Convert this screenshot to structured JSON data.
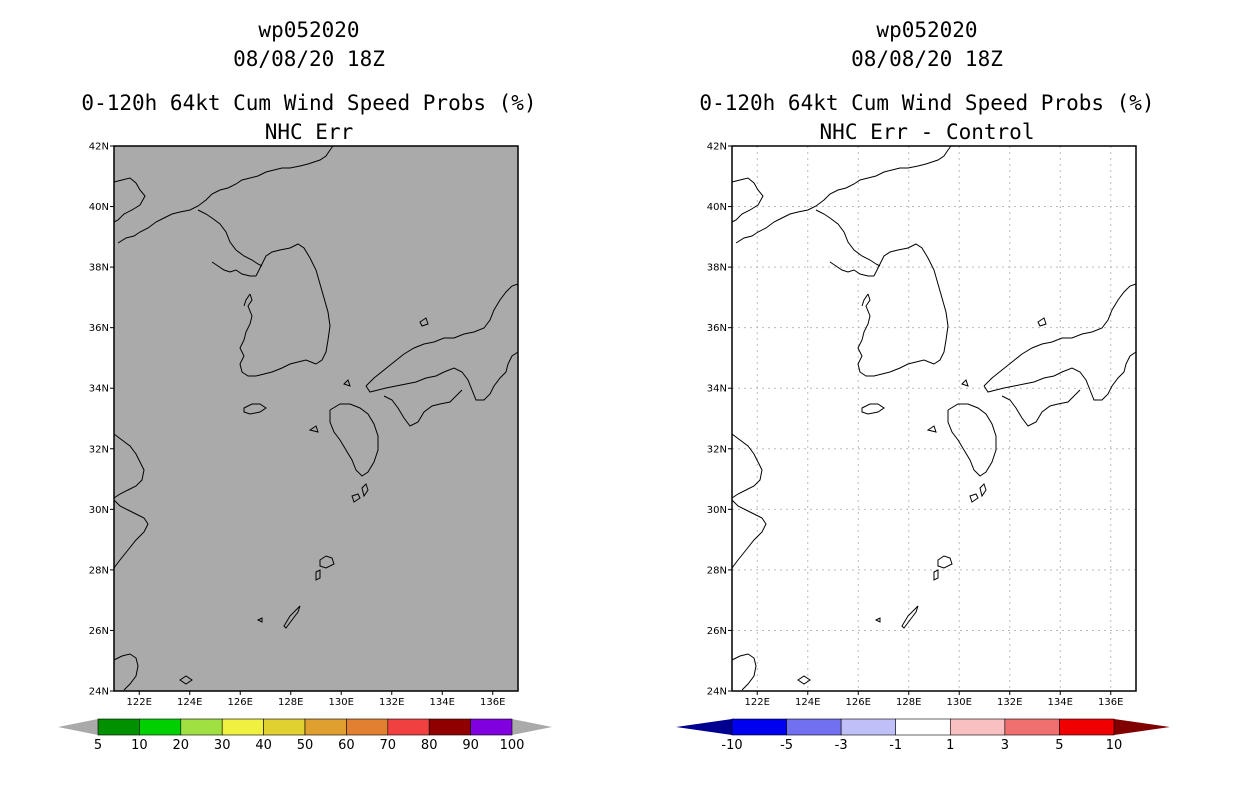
{
  "panels": [
    {
      "id": "left",
      "title_line1": "wp052020",
      "title_line2": "08/08/20 18Z",
      "title_line3": "0-120h 64kt Cum Wind Speed Probs (%)",
      "title_line4": "NHC Err",
      "background": "#aaaaaa",
      "gridlines": false,
      "colorbar": {
        "labels": [
          "5",
          "10",
          "20",
          "30",
          "40",
          "50",
          "60",
          "70",
          "80",
          "90",
          "100"
        ],
        "colors": [
          "#009000",
          "#00d000",
          "#a0e040",
          "#f0f040",
          "#e0d030",
          "#e0a030",
          "#e08030",
          "#f04040",
          "#900000",
          "#8000e0"
        ],
        "end_left_color": "#aaaaaa",
        "end_right_color": "#aaaaaa"
      }
    },
    {
      "id": "right",
      "title_line1": "wp052020",
      "title_line2": "08/08/20 18Z",
      "title_line3": "0-120h 64kt Cum Wind Speed Probs (%)",
      "title_line4": "NHC Err - Control",
      "background": "#ffffff",
      "gridlines": true,
      "colorbar": {
        "labels": [
          "-10",
          "-5",
          "-3",
          "-1",
          "1",
          "3",
          "5",
          "10"
        ],
        "colors": [
          "#0000f0",
          "#7070f0",
          "#c0c0f8",
          "#ffffff",
          "#f8c0c0",
          "#f07070",
          "#f00000"
        ],
        "end_left_color": "#000090",
        "end_right_color": "#800000"
      }
    }
  ],
  "map": {
    "lon_labels": [
      "122E",
      "124E",
      "126E",
      "128E",
      "130E",
      "132E",
      "134E",
      "136E"
    ],
    "lat_labels": [
      "42N",
      "40N",
      "38N",
      "36N",
      "34N",
      "32N",
      "30N",
      "28N",
      "26N",
      "24N"
    ],
    "lon_range": [
      121,
      137
    ],
    "lat_range": [
      24,
      42
    ]
  }
}
